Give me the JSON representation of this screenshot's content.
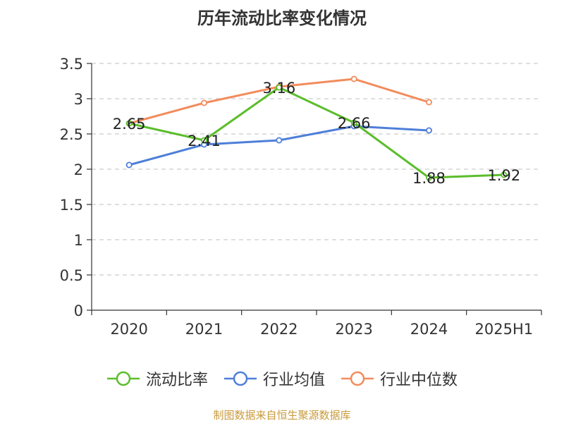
{
  "chart_data": {
    "type": "line",
    "title": "历年流动比率变化情况",
    "categories": [
      "2020",
      "2021",
      "2022",
      "2023",
      "2024",
      "2025H1"
    ],
    "ylim": [
      0,
      3.5
    ],
    "yticks": [
      "0",
      "0.5",
      "1",
      "1.5",
      "2",
      "2.5",
      "3",
      "3.5"
    ],
    "grid": "horizontal dashed",
    "legend_position": "bottom",
    "series": [
      {
        "name": "流动比率",
        "color": "#5bbd2b",
        "values": [
          2.65,
          2.41,
          3.16,
          2.66,
          1.88,
          1.92
        ],
        "labels": [
          "2.65",
          "2.41",
          "3.16",
          "2.66",
          "1.88",
          "1.92"
        ]
      },
      {
        "name": "行业均值",
        "color": "#4e7fd9",
        "values": [
          2.06,
          2.35,
          2.41,
          2.61,
          2.55,
          null
        ]
      },
      {
        "name": "行业中位数",
        "color": "#f28c5c",
        "values": [
          2.65,
          2.94,
          3.17,
          3.28,
          2.95,
          null
        ]
      }
    ]
  },
  "footer": {
    "source": "制图数据来自恒生聚源数据库"
  }
}
